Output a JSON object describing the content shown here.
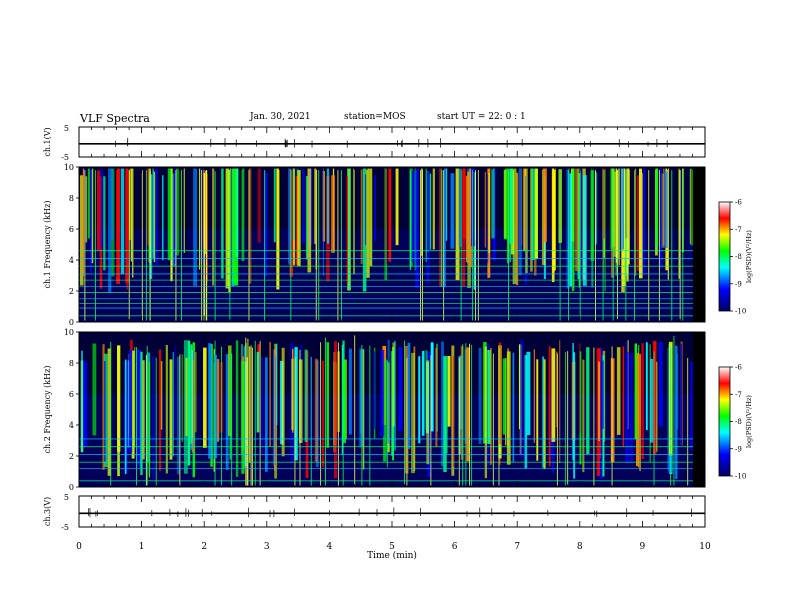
{
  "header": {
    "title": "VLF Spectra",
    "date": "Jan. 30, 2021",
    "station": "station=MOS",
    "start": "start UT = 22: 0 : 1"
  },
  "chart_data": [
    {
      "type": "line",
      "title": "",
      "ylabel": "ch.1(V)",
      "xlim": [
        0,
        10
      ],
      "ylim": [
        -5,
        5
      ],
      "yticks": [
        "5",
        "-5"
      ],
      "series": [
        {
          "x": [
            0,
            10
          ],
          "values": [
            -0.6,
            -0.6
          ]
        }
      ]
    },
    {
      "type": "heatmap",
      "ylabel": "ch.1 Frequency (kHz)",
      "xlim": [
        0,
        10
      ],
      "ylim": [
        0,
        10
      ],
      "yticks": [
        "0",
        "2",
        "4",
        "6",
        "8",
        "10"
      ],
      "colorbar": {
        "label": "log(PSD)(V²/Hz)",
        "ticks": [
          "-6",
          "-7",
          "-8",
          "-9",
          "-10"
        ],
        "range": [
          -10,
          -6
        ]
      },
      "band_center_khz": 8.2,
      "horizontal_lines_khz": [
        0.4,
        0.9,
        1.2,
        1.5,
        1.9,
        2.3,
        2.7,
        3.1,
        3.6,
        4.1,
        4.6
      ],
      "colors": [
        "#000040",
        "#0000ff",
        "#00ffff",
        "#00ff00",
        "#ffff00",
        "#ff0000",
        "#ffffff"
      ]
    },
    {
      "type": "heatmap",
      "ylabel": "ch.2 Frequency (kHz)",
      "xlim": [
        0,
        10
      ],
      "ylim": [
        0,
        10
      ],
      "yticks": [
        "0",
        "2",
        "4",
        "6",
        "8",
        "10"
      ],
      "colorbar": {
        "label": "log(PSD)(V²/Hz)",
        "ticks": [
          "-6",
          "-7",
          "-8",
          "-9",
          "-10"
        ],
        "range": [
          -10,
          -6
        ]
      },
      "band_center_khz": 6.8,
      "horizontal_lines_khz": [
        0.4,
        1.2,
        1.6,
        2.1,
        2.6,
        3.1
      ],
      "colors": [
        "#000040",
        "#0000ff",
        "#00ffff",
        "#00ff00",
        "#ffff00",
        "#ff0000",
        "#ffffff"
      ]
    },
    {
      "type": "line",
      "ylabel": "ch.3(V)",
      "xlim": [
        0,
        10
      ],
      "ylim": [
        -5,
        5
      ],
      "yticks": [
        "5",
        "-5"
      ],
      "series": [
        {
          "x": [
            0,
            10
          ],
          "values": [
            -0.6,
            -0.6
          ]
        }
      ]
    }
  ],
  "xaxis": {
    "label": "Time (min)",
    "ticks": [
      "0",
      "1",
      "2",
      "3",
      "4",
      "5",
      "6",
      "7",
      "8",
      "9",
      "10"
    ]
  }
}
